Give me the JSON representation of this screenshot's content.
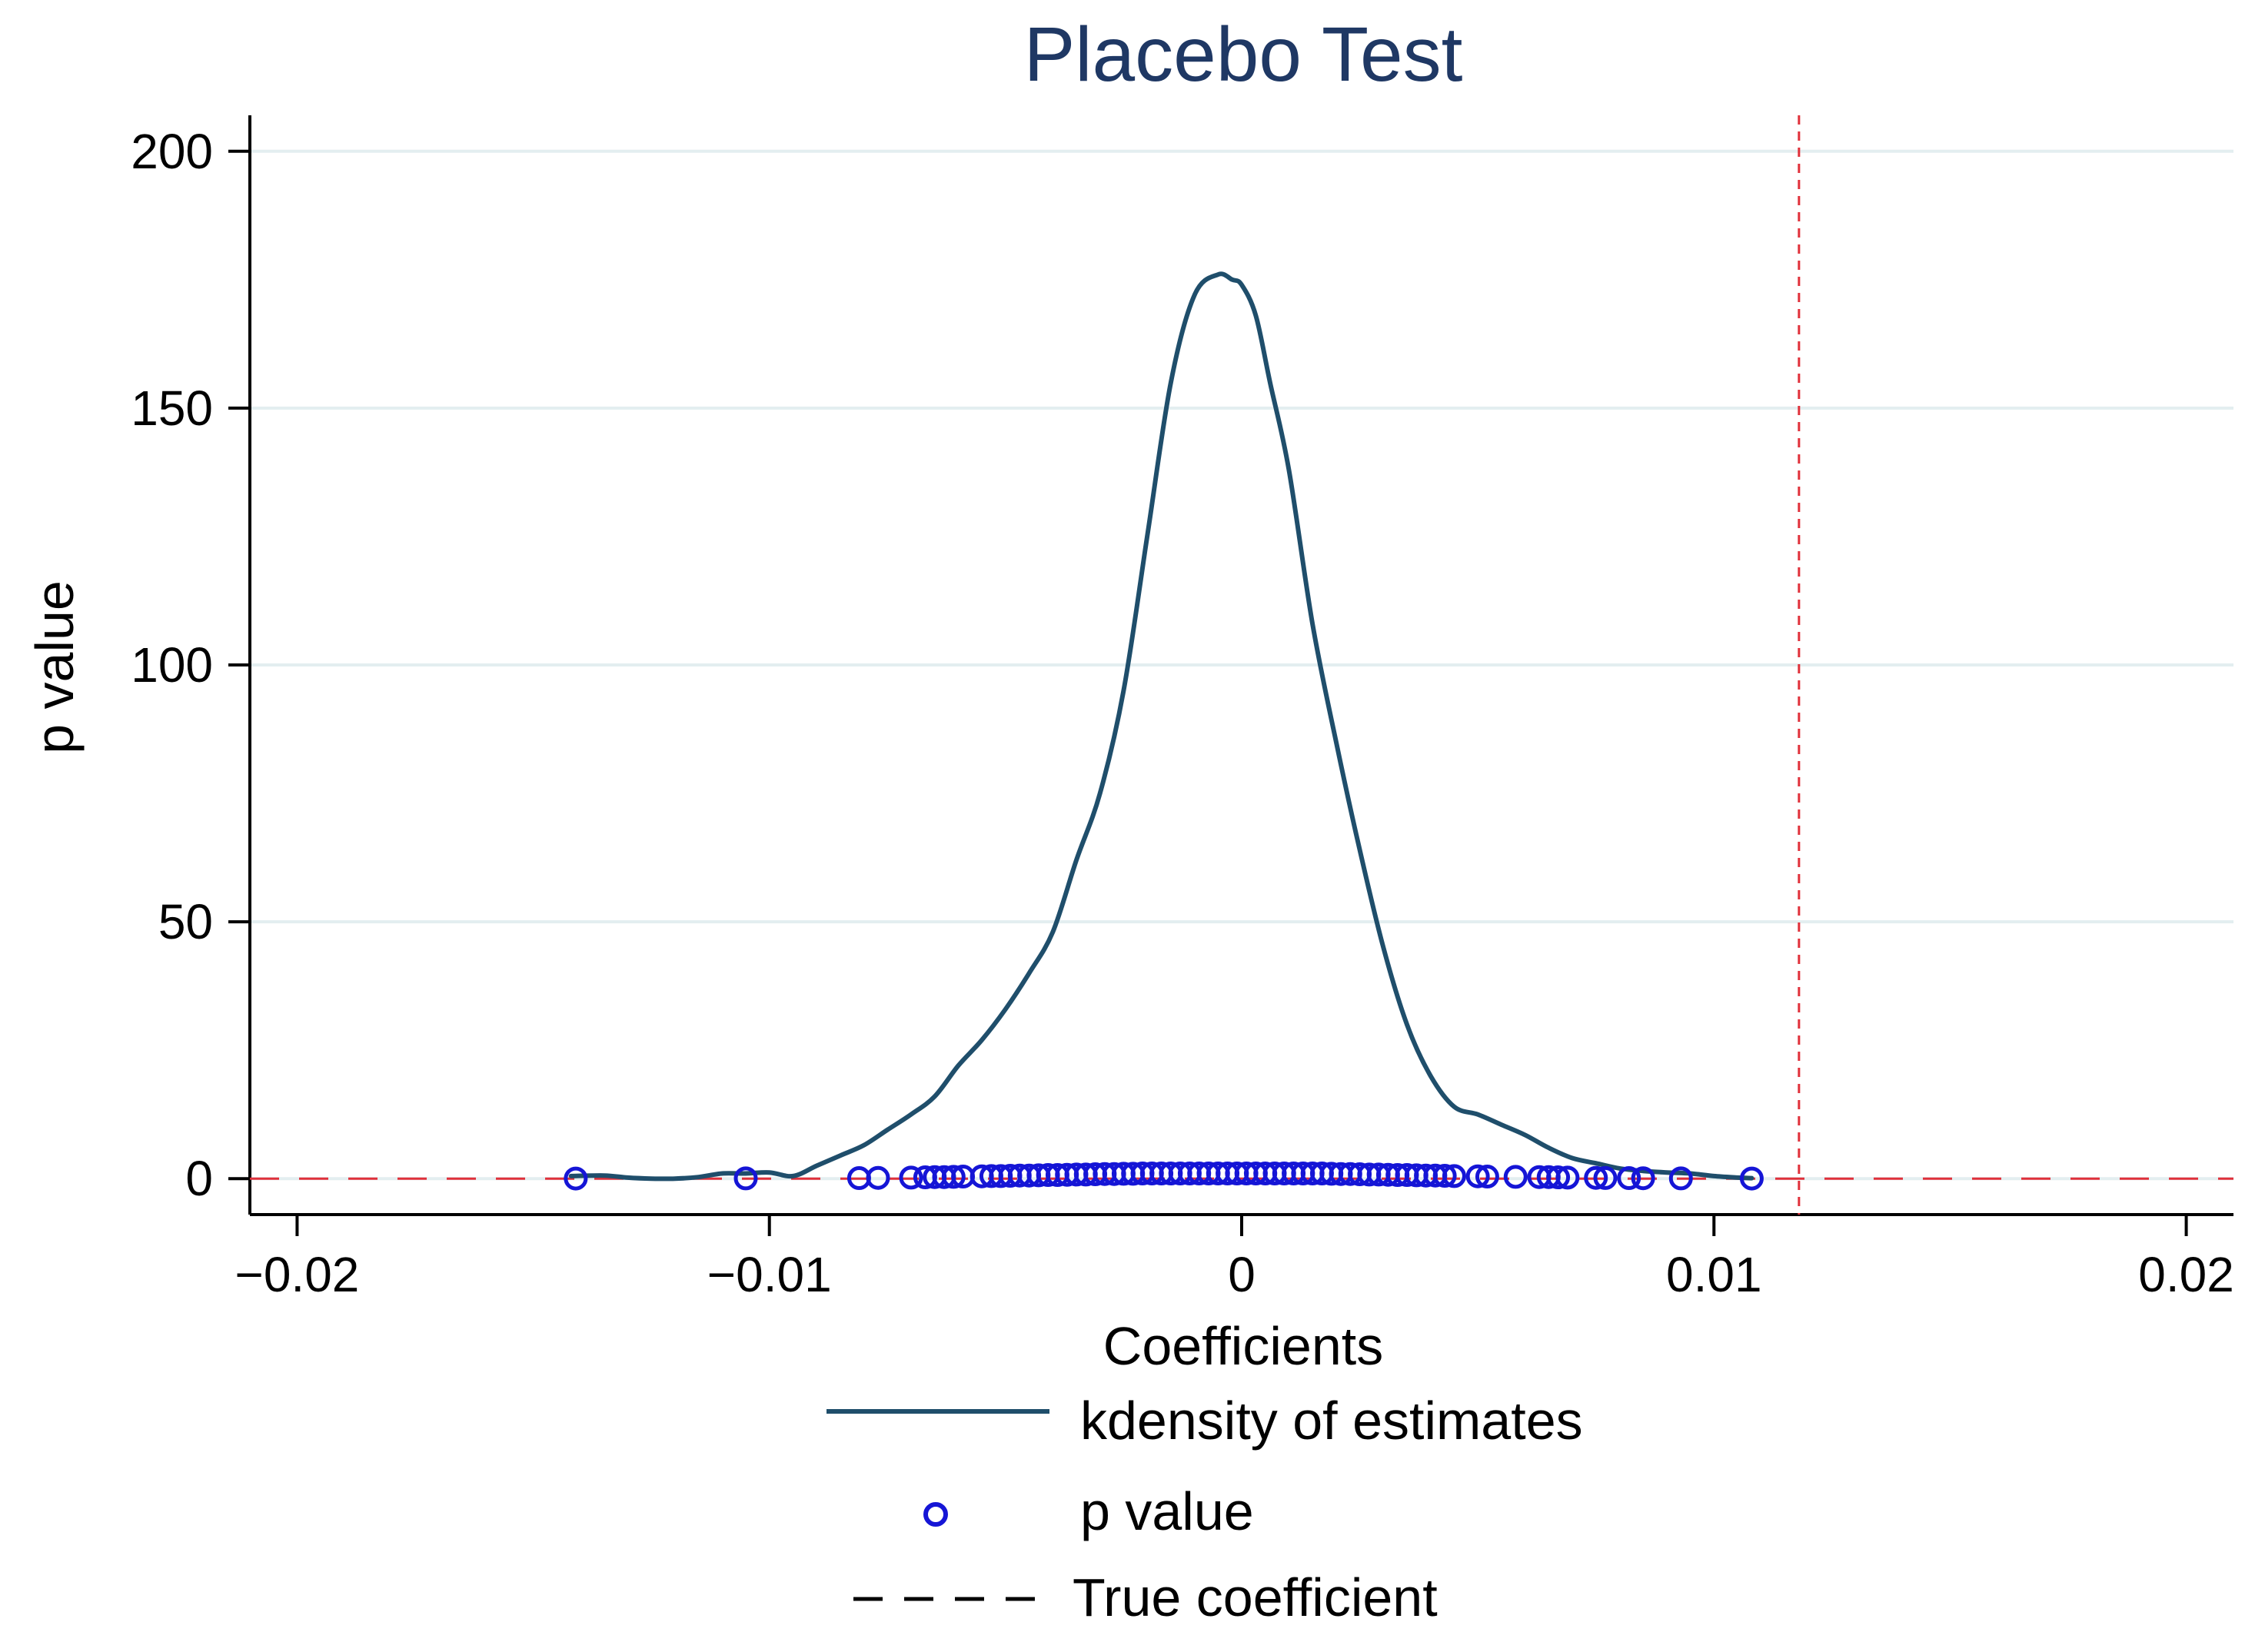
{
  "chart_data": {
    "type": "line",
    "title": "Placebo Test",
    "xlabel": "Coefficients",
    "ylabel": "p value",
    "xlim": [
      -0.021,
      0.021
    ],
    "ylim": [
      -7,
      207
    ],
    "x_ticks": [
      -0.02,
      -0.01,
      0,
      0.01,
      0.02
    ],
    "x_tick_labels": [
      "−0.02",
      "−0.01",
      "0",
      "0.01",
      "0.02"
    ],
    "y_ticks": [
      0,
      50,
      100,
      150,
      200
    ],
    "y_tick_labels": [
      "0",
      "50",
      "100",
      "150",
      "200"
    ],
    "grid": true,
    "colors": {
      "kdensity": "#1f4e6b",
      "p_value": "#1515d6",
      "true_coefficient": "#e0303a",
      "title": "#1f3864",
      "grid": "#e3eef0",
      "axis": "#000000"
    },
    "series": [
      {
        "name": "kdensity of estimates",
        "style": "solid",
        "x": [
          -0.0142,
          -0.0135,
          -0.013,
          -0.0125,
          -0.012,
          -0.0115,
          -0.011,
          -0.0105,
          -0.01,
          -0.0095,
          -0.009,
          -0.0085,
          -0.008,
          -0.0075,
          -0.007,
          -0.0065,
          -0.006,
          -0.0055,
          -0.005,
          -0.0045,
          -0.004,
          -0.0035,
          -0.003,
          -0.0025,
          -0.002,
          -0.0015,
          -0.001,
          -0.0005,
          -0.0002,
          0.0,
          0.0003,
          0.0006,
          0.001,
          0.0015,
          0.002,
          0.0025,
          0.003,
          0.0035,
          0.004,
          0.0045,
          0.005,
          0.0055,
          0.006,
          0.0065,
          0.007,
          0.0075,
          0.008,
          0.0085,
          0.009,
          0.0095,
          0.01,
          0.0105,
          0.0108
        ],
        "y": [
          0.5,
          0.6,
          0.2,
          0.0,
          0.0,
          0.3,
          1.0,
          1.0,
          1.2,
          0.5,
          2.5,
          4.5,
          6.5,
          9.5,
          12.5,
          16.0,
          22.0,
          27.0,
          33.0,
          40.0,
          48.0,
          62.0,
          75.0,
          95.0,
          125.0,
          155.0,
          172.0,
          176.0,
          175.0,
          174.0,
          168.0,
          155.0,
          138.0,
          108.0,
          85.0,
          64.0,
          45.0,
          30.0,
          20.0,
          14.0,
          12.5,
          10.5,
          8.5,
          6.0,
          4.0,
          3.0,
          2.0,
          1.5,
          1.2,
          1.0,
          0.5,
          0.2,
          0.1
        ]
      },
      {
        "name": "p value",
        "style": "markers",
        "x": [
          -0.0141,
          -0.0105,
          -0.0081,
          -0.0077,
          -0.007,
          -0.0067,
          -0.0065,
          -0.0063,
          -0.0061,
          -0.0059,
          -0.0055,
          -0.0053,
          -0.0051,
          -0.0049,
          -0.0047,
          -0.0045,
          -0.0043,
          -0.0041,
          -0.0039,
          -0.0037,
          -0.0035,
          -0.0033,
          -0.0031,
          -0.0029,
          -0.0027,
          -0.0025,
          -0.0023,
          -0.0021,
          -0.0019,
          -0.0017,
          -0.0015,
          -0.0013,
          -0.0011,
          -0.0009,
          -0.0007,
          -0.0005,
          -0.0003,
          -0.0001,
          0.0001,
          0.0003,
          0.0005,
          0.0007,
          0.0009,
          0.0011,
          0.0013,
          0.0015,
          0.0017,
          0.0019,
          0.0021,
          0.0023,
          0.0025,
          0.0027,
          0.0029,
          0.0031,
          0.0033,
          0.0035,
          0.0037,
          0.0039,
          0.0041,
          0.0043,
          0.0045,
          0.005,
          0.0052,
          0.0058,
          0.0063,
          0.0065,
          0.0067,
          0.0069,
          0.0075,
          0.0077,
          0.0082,
          0.0085,
          0.0093,
          0.0108
        ],
        "y": [
          0.02,
          0.05,
          0.1,
          0.15,
          0.2,
          0.25,
          0.3,
          0.3,
          0.35,
          0.4,
          0.45,
          0.5,
          0.5,
          0.55,
          0.6,
          0.6,
          0.65,
          0.7,
          0.7,
          0.75,
          0.8,
          0.8,
          0.85,
          0.9,
          0.9,
          0.95,
          0.95,
          1.0,
          1.0,
          1.0,
          1.0,
          1.0,
          1.0,
          1.0,
          1.0,
          1.0,
          1.0,
          1.0,
          1.0,
          1.0,
          1.0,
          1.0,
          1.0,
          1.0,
          1.0,
          1.0,
          1.0,
          0.95,
          0.9,
          0.9,
          0.85,
          0.8,
          0.8,
          0.75,
          0.7,
          0.7,
          0.65,
          0.6,
          0.6,
          0.55,
          0.5,
          0.45,
          0.4,
          0.35,
          0.3,
          0.3,
          0.25,
          0.2,
          0.15,
          0.12,
          0.1,
          0.08,
          0.05,
          0.02
        ]
      },
      {
        "name": "True coefficient",
        "style": "dashed",
        "vertical_x": 0.0118,
        "horizontal_y": 0
      }
    ],
    "legend": {
      "position": "bottom",
      "entries": [
        "kdensity of estimates",
        "p value",
        "True coefficient"
      ]
    }
  }
}
